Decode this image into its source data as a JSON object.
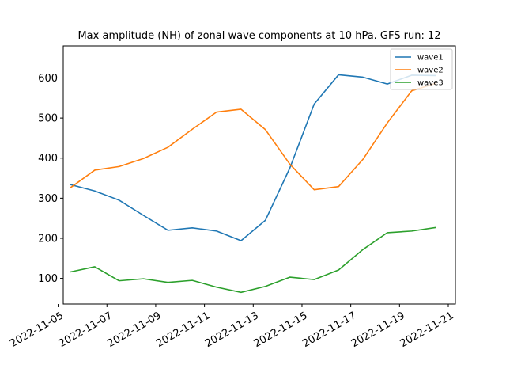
{
  "chart_data": {
    "type": "line",
    "title": "Max amplitude (NH) of zonal wave components at 10 hPa. GFS run: 12",
    "xlabel": "",
    "ylabel": "",
    "x": [
      "2022-11-05T12",
      "2022-11-06T12",
      "2022-11-07T12",
      "2022-11-08T12",
      "2022-11-09T12",
      "2022-11-10T12",
      "2022-11-11T12",
      "2022-11-12T12",
      "2022-11-13T12",
      "2022-11-14T12",
      "2022-11-15T12",
      "2022-11-16T12",
      "2022-11-17T12",
      "2022-11-18T12",
      "2022-11-19T12",
      "2022-11-20T12"
    ],
    "x_ticks": [
      "2022-11-05",
      "2022-11-07",
      "2022-11-09",
      "2022-11-11",
      "2022-11-13",
      "2022-11-15",
      "2022-11-17",
      "2022-11-19",
      "2022-11-21"
    ],
    "xlim": [
      "2022-11-05T05",
      "2022-11-21T07"
    ],
    "y_ticks": [
      100,
      200,
      300,
      400,
      500,
      600
    ],
    "ylim": [
      36,
      680
    ],
    "grid": false,
    "legend_position": "top-right",
    "series": [
      {
        "name": "wave1",
        "color": "#1f77b4",
        "values": [
          334,
          318,
          295,
          257,
          220,
          226,
          218,
          194,
          245,
          375,
          535,
          608,
          602,
          585,
          607,
          606
        ]
      },
      {
        "name": "wave2",
        "color": "#ff7f0e",
        "values": [
          326,
          370,
          379,
          399,
          427,
          472,
          515,
          522,
          471,
          385,
          321,
          329,
          397,
          488,
          568,
          587
        ]
      },
      {
        "name": "wave3",
        "color": "#2ca02c",
        "values": [
          116,
          129,
          94,
          99,
          90,
          95,
          78,
          65,
          80,
          103,
          97,
          121,
          172,
          214,
          218,
          227
        ]
      }
    ]
  }
}
